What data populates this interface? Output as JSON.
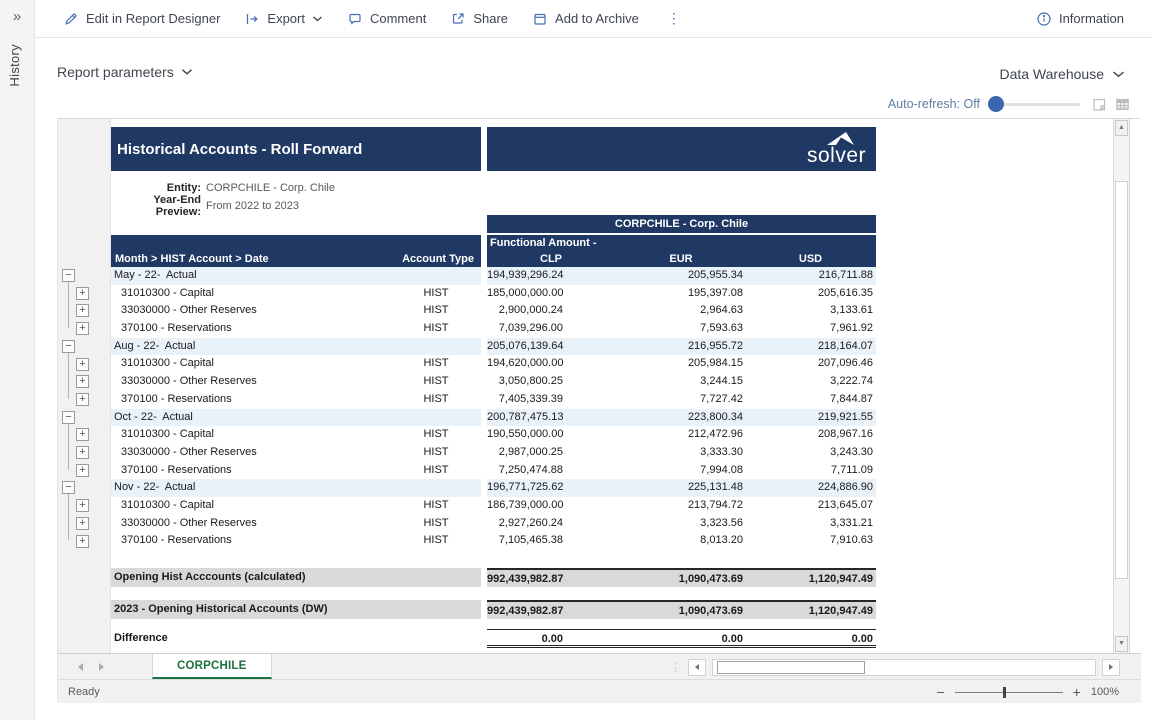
{
  "sidebar": {
    "collapse_glyph": "»",
    "history_label": "History"
  },
  "toolbar": {
    "items": [
      {
        "label": "Edit in Report Designer"
      },
      {
        "label": "Export"
      },
      {
        "label": "Comment"
      },
      {
        "label": "Share"
      },
      {
        "label": "Add to Archive"
      }
    ],
    "overflow_glyph": "⋮",
    "information_label": "Information"
  },
  "params": {
    "report_parameters_label": "Report parameters",
    "data_warehouse_label": "Data Warehouse",
    "auto_refresh_label": "Auto-refresh: Off"
  },
  "report": {
    "title": "Historical Accounts - Roll Forward",
    "logo_text": "solver",
    "entity_label": "Entity:",
    "entity_value": "CORPCHILE - Corp. Chile",
    "preview_label": "Year-End Preview:",
    "preview_value": "From 2022 to 2023",
    "entity_banner": "CORPCHILE - Corp. Chile",
    "columns": {
      "label": "Month > HIST Account > Date",
      "account_type": "Account Type",
      "amount_line1": "Functional Amount -",
      "amount_line2": "CLP",
      "eur": "EUR",
      "usd": "USD"
    },
    "outline": {
      "collapse_glyph": "−",
      "expand_glyph": "+"
    },
    "groups": [
      {
        "label": "May - 22-  Actual",
        "values": [
          "194,939,296.24",
          "205,955.34",
          "216,711.88"
        ],
        "rows": [
          {
            "account": "31010300 - Capital",
            "type": "HIST",
            "values": [
              "185,000,000.00",
              "195,397.08",
              "205,616.35"
            ]
          },
          {
            "account": "33030000 - Other Reserves",
            "type": "HIST",
            "values": [
              "2,900,000.24",
              "2,964.63",
              "3,133.61"
            ]
          },
          {
            "account": "370100 - Reservations",
            "type": "HIST",
            "values": [
              "7,039,296.00",
              "7,593.63",
              "7,961.92"
            ]
          }
        ]
      },
      {
        "label": "Aug - 22-  Actual",
        "values": [
          "205,076,139.64",
          "216,955.72",
          "218,164.07"
        ],
        "rows": [
          {
            "account": "31010300 - Capital",
            "type": "HIST",
            "values": [
              "194,620,000.00",
              "205,984.15",
              "207,096.46"
            ]
          },
          {
            "account": "33030000 - Other Reserves",
            "type": "HIST",
            "values": [
              "3,050,800.25",
              "3,244.15",
              "3,222.74"
            ]
          },
          {
            "account": "370100 - Reservations",
            "type": "HIST",
            "values": [
              "7,405,339.39",
              "7,727.42",
              "7,844.87"
            ]
          }
        ]
      },
      {
        "label": "Oct - 22-  Actual",
        "values": [
          "200,787,475.13",
          "223,800.34",
          "219,921.55"
        ],
        "rows": [
          {
            "account": "31010300 - Capital",
            "type": "HIST",
            "values": [
              "190,550,000.00",
              "212,472.96",
              "208,967.16"
            ]
          },
          {
            "account": "33030000 - Other Reserves",
            "type": "HIST",
            "values": [
              "2,987,000.25",
              "3,333.30",
              "3,243.30"
            ]
          },
          {
            "account": "370100 - Reservations",
            "type": "HIST",
            "values": [
              "7,250,474.88",
              "7,994.08",
              "7,711.09"
            ]
          }
        ]
      },
      {
        "label": "Nov - 22-  Actual",
        "values": [
          "196,771,725.62",
          "225,131.48",
          "224,886.90"
        ],
        "rows": [
          {
            "account": "31010300 - Capital",
            "type": "HIST",
            "values": [
              "186,739,000.00",
              "213,794.72",
              "213,645.07"
            ]
          },
          {
            "account": "33030000 - Other Reserves",
            "type": "HIST",
            "values": [
              "2,927,260.24",
              "3,323.56",
              "3,331.21"
            ]
          },
          {
            "account": "370100 - Reservations",
            "type": "HIST",
            "values": [
              "7,105,465.38",
              "8,013.20",
              "7,910.63"
            ]
          }
        ]
      }
    ],
    "totals": [
      {
        "kind": "calc",
        "label": "Opening Hist Acccounts (calculated)",
        "values": [
          "992,439,982.87",
          "1,090,473.69",
          "1,120,947.49"
        ]
      },
      {
        "kind": "dw",
        "label": "2023 - Opening Historical Accounts (DW)",
        "values": [
          "992,439,982.87",
          "1,090,473.69",
          "1,120,947.49"
        ]
      },
      {
        "kind": "diff",
        "label": "Difference",
        "values": [
          "0.00",
          "0.00",
          "0.00"
        ]
      }
    ]
  },
  "sheet": {
    "tab_label": "CORPCHILE",
    "status": "Ready",
    "zoom_label": "100%",
    "up_arrow_glyph": "▲",
    "down_arrow_glyph": "▼",
    "zoom_out_glyph": "−",
    "zoom_in_glyph": "+",
    "hscroll_dots_glyph": "⋮"
  },
  "colors": {
    "navy": "#1f3864",
    "group_row": "#e9f1f9",
    "total_row": "#d9d9d9",
    "tab_green": "#1e7145",
    "icon_blue": "#4a6bb5"
  }
}
